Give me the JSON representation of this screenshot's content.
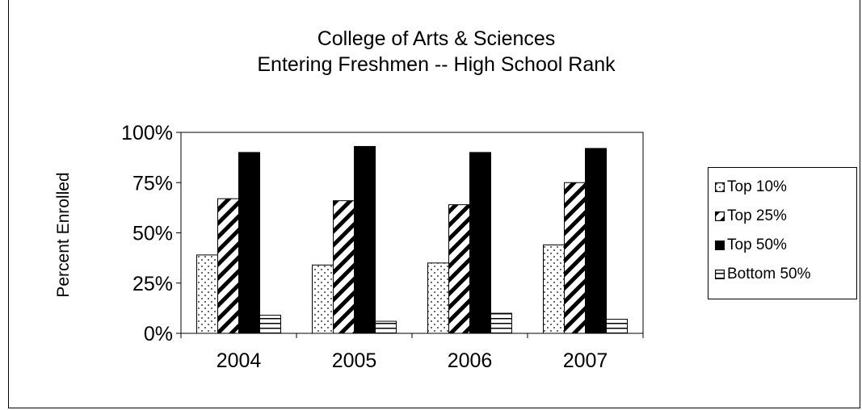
{
  "chart_data": {
    "type": "bar",
    "title": "College of Arts & Sciences",
    "subtitle": "Entering Freshmen -- High School Rank",
    "xlabel": "",
    "ylabel": "Percent Enrolled",
    "categories": [
      "2004",
      "2005",
      "2006",
      "2007"
    ],
    "ylim": [
      0,
      100
    ],
    "yticks": [
      "0%",
      "25%",
      "50%",
      "75%",
      "100%"
    ],
    "grid": false,
    "legend_position": "right",
    "series": [
      {
        "name": "Top 10%",
        "values": [
          39,
          34,
          35,
          44
        ],
        "pattern": "dots"
      },
      {
        "name": "Top 25%",
        "values": [
          67,
          66,
          64,
          75
        ],
        "pattern": "diagonal"
      },
      {
        "name": "Top 50%",
        "values": [
          90,
          93,
          90,
          92
        ],
        "pattern": "solid"
      },
      {
        "name": "Bottom 50%",
        "values": [
          9,
          6,
          10,
          7
        ],
        "pattern": "horizontal"
      }
    ],
    "colors": {
      "ink": "#000000",
      "background": "#ffffff"
    }
  }
}
